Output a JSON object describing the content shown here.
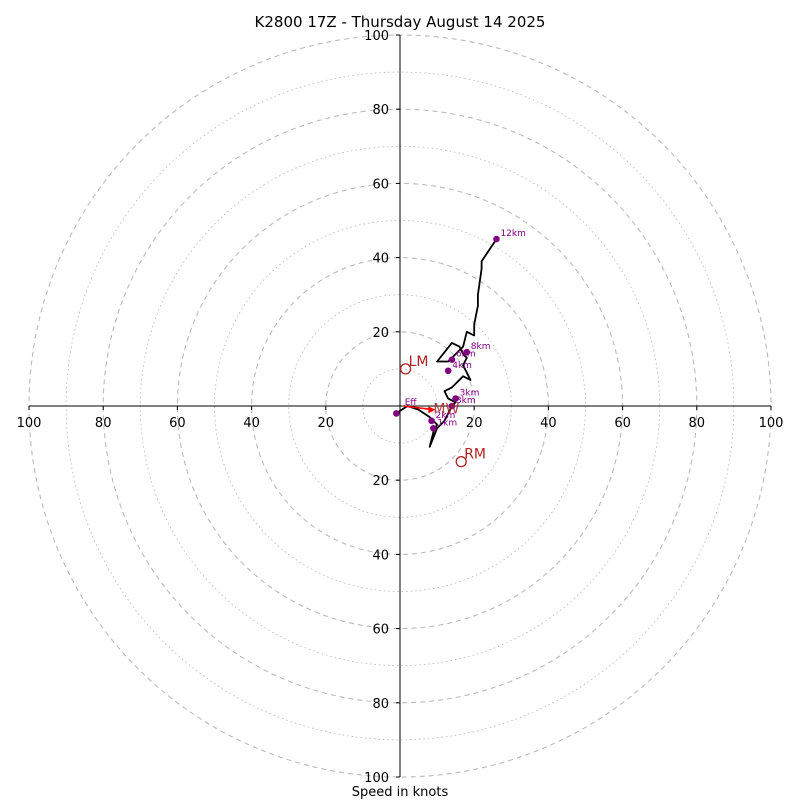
{
  "chart_data": {
    "type": "line",
    "title": "K2800 17Z - Thursday August 14 2025",
    "xlabel": "Speed in knots",
    "ylabel": "",
    "range_knots": [
      -100,
      100
    ],
    "ring_major_step": 20,
    "ring_minor_step": 10,
    "x_tick_labels": [
      "100",
      "80",
      "60",
      "40",
      "20",
      "20",
      "40",
      "60",
      "80",
      "100"
    ],
    "x_tick_values": [
      -100,
      -80,
      -60,
      -40,
      -20,
      20,
      40,
      60,
      80,
      100
    ],
    "y_tick_labels": [
      "100",
      "80",
      "60",
      "40",
      "20",
      "20",
      "40",
      "60",
      "80",
      "100"
    ],
    "y_tick_values": [
      100,
      80,
      60,
      40,
      20,
      -20,
      -40,
      -60,
      -80,
      -100
    ],
    "grid": true,
    "series": [
      {
        "x": [
          -1,
          2,
          5,
          8,
          10,
          9,
          8,
          10,
          12,
          14,
          15,
          13,
          12,
          14,
          17,
          19,
          18,
          17,
          18,
          17,
          16,
          14,
          10,
          13,
          15,
          17,
          18,
          20,
          20,
          21,
          21,
          22,
          22,
          26
        ],
        "y": [
          -2,
          0,
          -1,
          -3,
          -5,
          -7,
          -11,
          -6,
          -4,
          0,
          1,
          2,
          4,
          5,
          8,
          7,
          9,
          11,
          13,
          14,
          16,
          17,
          12,
          12,
          14,
          16,
          20,
          19,
          22,
          27,
          30,
          37,
          39,
          45
        ]
      }
    ],
    "height_markers": [
      {
        "label": "",
        "x": -1,
        "y": -2
      },
      {
        "label": "1km",
        "x": 9,
        "y": -6
      },
      {
        "label": "2km",
        "x": 8.5,
        "y": -4
      },
      {
        "label": "3km",
        "x": 14,
        "y": 0
      },
      {
        "label": "3km",
        "x": 15,
        "y": 2
      },
      {
        "label": "4km",
        "x": 13,
        "y": 9.5
      },
      {
        "label": "6km",
        "x": 14,
        "y": 12.5
      },
      {
        "label": "8km",
        "x": 18,
        "y": 14.5
      },
      {
        "label": "12km",
        "x": 26,
        "y": 45
      }
    ],
    "annotations": [
      {
        "label": "Eff",
        "x": 1,
        "y": 0
      },
      {
        "label": "MW",
        "x": 9,
        "y": -1
      },
      {
        "label": "LM",
        "x": 1.5,
        "y": 10
      },
      {
        "label": "RM",
        "x": 16.5,
        "y": -15
      }
    ],
    "colors": {
      "hodograph": "#000000",
      "height_marker": "#800080",
      "storm_motion": "#b22222",
      "effective_shear": "#ff0000",
      "grid": "#bbbbbb"
    }
  }
}
